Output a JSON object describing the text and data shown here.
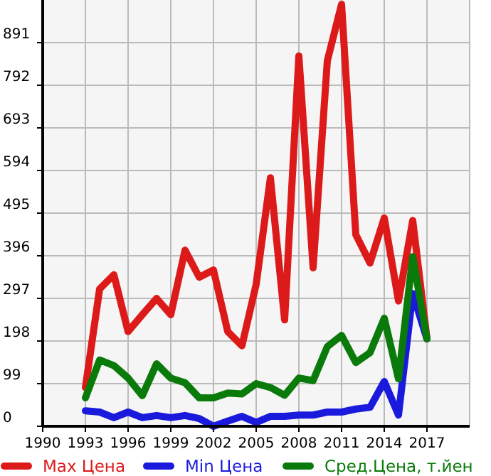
{
  "chart_data": {
    "type": "line",
    "x": [
      1993,
      1994,
      1995,
      1996,
      1997,
      1998,
      1999,
      2000,
      2001,
      2002,
      2003,
      2004,
      2005,
      2006,
      2007,
      2008,
      2009,
      2010,
      2011,
      2012,
      2013,
      2014,
      2015,
      2016,
      2017
    ],
    "series": [
      {
        "name": "Max Цена",
        "color": "#dd1a1a",
        "values": [
          90,
          319,
          352,
          220,
          259,
          297,
          259,
          409,
          346,
          363,
          220,
          187,
          330,
          577,
          247,
          860,
          368,
          849,
          980,
          445,
          379,
          484,
          291,
          478,
          203
        ]
      },
      {
        "name": "Min Цена",
        "color": "#1a1add",
        "values": [
          36,
          33,
          20,
          33,
          20,
          25,
          20,
          25,
          18,
          0,
          12,
          23,
          9,
          23,
          23,
          26,
          26,
          33,
          33,
          40,
          44,
          104,
          26,
          308,
          203
        ]
      },
      {
        "name": "Сред.Цена, т.йен",
        "color": "#0a7a0a",
        "values": [
          66,
          154,
          141,
          112,
          71,
          145,
          112,
          101,
          66,
          66,
          77,
          75,
          99,
          90,
          72,
          112,
          106,
          185,
          211,
          148,
          171,
          251,
          110,
          394,
          203
        ]
      }
    ],
    "xlim": [
      1990,
      2020
    ],
    "xticks": [
      1990,
      1993,
      1996,
      1999,
      2002,
      2005,
      2008,
      2011,
      2014,
      2017
    ],
    "ylim": [
      0,
      990
    ],
    "yticks": [
      0,
      99,
      198,
      297,
      396,
      495,
      594,
      693,
      792,
      891
    ],
    "grid": true,
    "legend": "bottom",
    "marker": "none",
    "line_style": "solid"
  }
}
